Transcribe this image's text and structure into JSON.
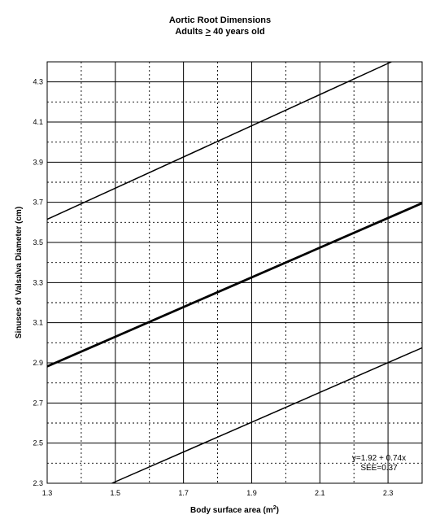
{
  "chart_data": {
    "type": "line",
    "title_line1": "Aortic Root Dimensions",
    "title_line2_prefix": "Adults ",
    "title_line2_symbol": ">",
    "title_line2_suffix": " 40 years old",
    "xlabel": "Body surface area (m",
    "xlabel_sup": "2",
    "xlabel_end": ")",
    "ylabel": "Sinuses of Valsalva Diameter (cm)",
    "xlim": [
      1.3,
      2.4
    ],
    "ylim": [
      2.3,
      4.4
    ],
    "x_ticks": [
      1.3,
      1.5,
      1.7,
      1.9,
      2.1,
      2.3
    ],
    "x_tick_labels": [
      "1.3",
      "1.5",
      "1.7",
      "1.9",
      "2.1",
      "2.3"
    ],
    "y_ticks": [
      2.3,
      2.5,
      2.7,
      2.9,
      3.1,
      3.3,
      3.5,
      3.7,
      3.9,
      4.1,
      4.3
    ],
    "y_tick_labels": [
      "2.3",
      "2.5",
      "2.7",
      "2.9",
      "3.1",
      "3.3",
      "3.5",
      "3.7",
      "3.9",
      "4.1",
      "4.3"
    ],
    "grid": true,
    "series": [
      {
        "x": [
          1.3,
          2.4
        ],
        "y": [
          2.882,
          3.696
        ],
        "weight": "bold"
      },
      {
        "x": [
          1.3,
          2.31
        ],
        "y": [
          3.615,
          4.4
        ],
        "weight": "normal"
      },
      {
        "x": [
          1.49,
          2.4
        ],
        "y": [
          2.3,
          2.975
        ],
        "weight": "normal"
      }
    ],
    "annotation_line1": "y=1.92 + 0.74x",
    "annotation_line2": "SEE=0.37"
  }
}
